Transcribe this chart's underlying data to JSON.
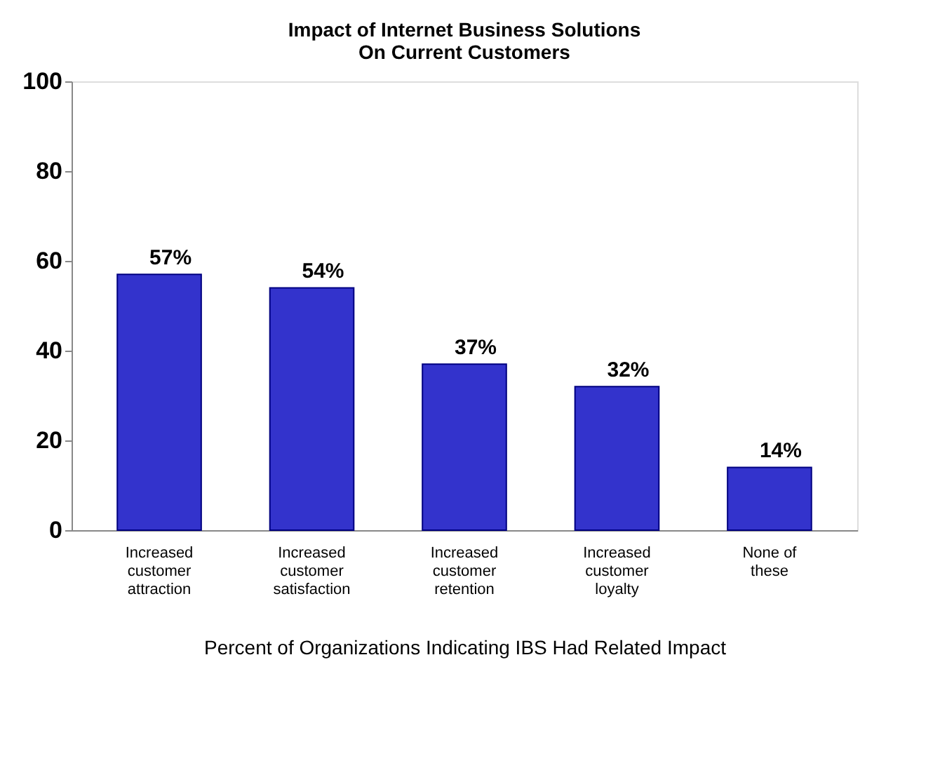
{
  "chart_data": {
    "type": "bar",
    "title": "Impact of Internet Business Solutions On Current Customers",
    "xlabel": "Percent of Organizations Indicating IBS Had Related Impact",
    "categories": [
      "Increased customer attraction",
      "Increased customer satisfaction",
      "Increased customer retention",
      "Increased customer loyalty",
      "None of these"
    ],
    "values": [
      57,
      54,
      37,
      32,
      14
    ],
    "value_labels": [
      "57%",
      "54%",
      "37%",
      "32%",
      "14%"
    ],
    "color": "#3333cc",
    "ylim": [
      0,
      100
    ],
    "yticks": [
      0,
      20,
      40,
      60,
      80,
      100
    ],
    "grid": false
  }
}
